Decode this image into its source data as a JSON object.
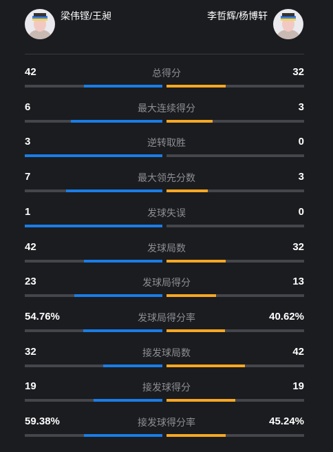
{
  "header": {
    "left_player": "梁伟铿/王昶",
    "right_player": "李哲辉/杨博轩"
  },
  "rows": [
    {
      "label": "总得分",
      "left": 42,
      "right": 32
    },
    {
      "label": "最大连续得分",
      "left": 6,
      "right": 3
    },
    {
      "label": "逆转取胜",
      "left": 3,
      "right": 0
    },
    {
      "label": "最大领先分数",
      "left": 7,
      "right": 3
    },
    {
      "label": "发球失误",
      "left": 1,
      "right": 0
    },
    {
      "label": "发球局数",
      "left": 42,
      "right": 32
    },
    {
      "label": "发球局得分",
      "left": 23,
      "right": 13
    },
    {
      "label": "发球局得分率",
      "left": 54.76,
      "right": 40.62,
      "left_label": "54.76%",
      "right_label": "40.62%"
    },
    {
      "label": "接发球局数",
      "left": 32,
      "right": 42
    },
    {
      "label": "接发球得分",
      "left": 19,
      "right": 19
    },
    {
      "label": "接发球得分率",
      "left": 59.38,
      "right": 45.24,
      "left_label": "59.38%",
      "right_label": "45.24%"
    }
  ]
}
